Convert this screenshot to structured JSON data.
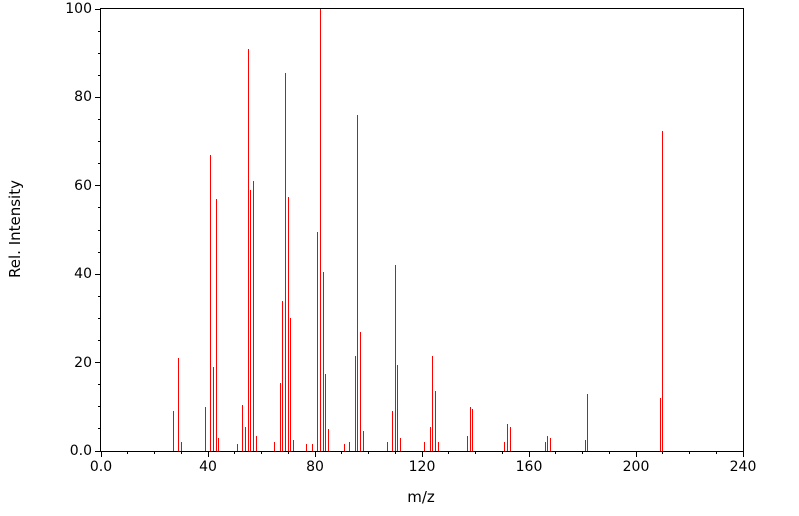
{
  "figure": {
    "background": "#ffffff",
    "axis_color": "#000000",
    "text_color": "#000000"
  },
  "chart_data": {
    "type": "bar",
    "subtype": "mass_spectrum_stick_plot",
    "title": "",
    "xlabel": "m/z",
    "ylabel": "Rel. Intensity",
    "xlim": [
      0,
      240
    ],
    "ylim": [
      0,
      100
    ],
    "grid": false,
    "legend": "none",
    "stick_color": "#ff0000",
    "x_ticks": {
      "values": [
        0,
        40,
        80,
        120,
        160,
        200,
        240
      ],
      "labels": [
        "0.0",
        "40",
        "80",
        "120",
        "160",
        "200",
        "240"
      ],
      "minor_step": 10
    },
    "y_ticks": {
      "values": [
        0,
        20,
        40,
        60,
        80,
        100
      ],
      "labels": [
        "0.0",
        "20",
        "40",
        "60",
        "80",
        "100"
      ],
      "minor_step": 5
    },
    "peaks": [
      [
        27,
        9
      ],
      [
        29,
        21
      ],
      [
        30,
        2
      ],
      [
        39,
        10
      ],
      [
        41,
        67
      ],
      [
        42,
        19
      ],
      [
        43,
        57
      ],
      [
        44,
        3
      ],
      [
        51,
        1.5
      ],
      [
        53,
        10.5
      ],
      [
        54,
        5.5
      ],
      [
        55,
        91
      ],
      [
        56,
        59
      ],
      [
        57,
        61
      ],
      [
        58,
        3.5
      ],
      [
        65,
        2
      ],
      [
        67,
        15.5
      ],
      [
        68,
        34
      ],
      [
        69,
        85.5
      ],
      [
        70,
        57.5
      ],
      [
        71,
        30
      ],
      [
        72,
        2.5
      ],
      [
        77,
        1.5
      ],
      [
        79,
        1.5
      ],
      [
        81,
        49.5
      ],
      [
        82,
        100
      ],
      [
        83,
        40.5
      ],
      [
        84,
        17.5
      ],
      [
        85,
        5
      ],
      [
        91,
        1.5
      ],
      [
        93,
        2
      ],
      [
        95,
        21.5
      ],
      [
        96,
        76
      ],
      [
        97,
        27
      ],
      [
        98,
        4.5
      ],
      [
        107,
        2
      ],
      [
        109,
        9
      ],
      [
        110,
        42
      ],
      [
        111,
        19.5
      ],
      [
        112,
        3
      ],
      [
        121,
        2
      ],
      [
        123,
        5.5
      ],
      [
        124,
        21.5
      ],
      [
        125,
        13.5
      ],
      [
        126,
        2
      ],
      [
        137,
        3.5
      ],
      [
        138,
        10
      ],
      [
        139,
        9.5
      ],
      [
        151,
        2
      ],
      [
        152,
        6
      ],
      [
        153,
        5.5
      ],
      [
        166,
        2
      ],
      [
        167,
        3.5
      ],
      [
        168,
        3
      ],
      [
        181,
        2.5
      ],
      [
        182,
        13
      ],
      [
        209,
        12
      ],
      [
        210,
        72.5
      ]
    ]
  }
}
